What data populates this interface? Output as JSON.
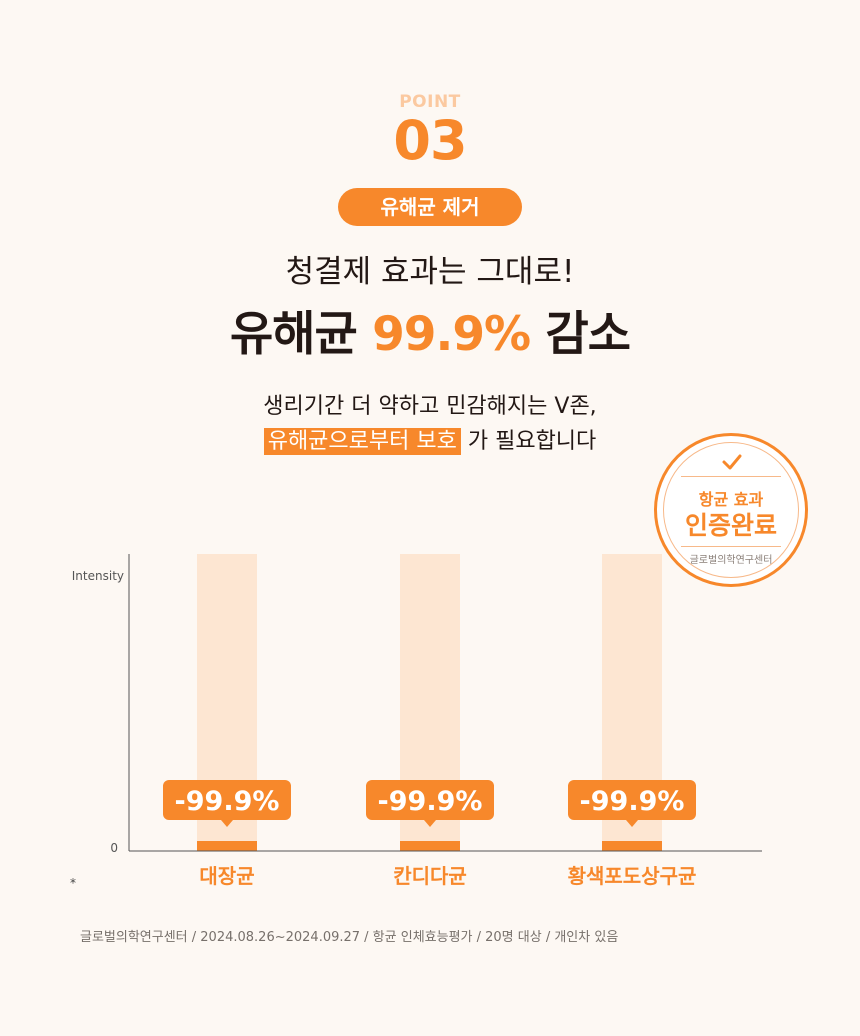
{
  "header": {
    "point_label": "POINT",
    "point_number": "03",
    "pill_label": "유해균 제거",
    "headline_line1": "청결제 효과는 그대로!",
    "headline_line2_prefix": "유해균 ",
    "headline_line2_highlight": "99.9%",
    "headline_line2_suffix": " 감소",
    "desc_line1": "생리기간 더 약하고 민감해지는 V존,",
    "desc_line2_highlight": "유해균으로부터 보호",
    "desc_line2_suffix": " 가 필요합니다"
  },
  "badge": {
    "icon": "check-icon",
    "line1": "항균 효과",
    "line2": "인증완료",
    "line3": "글로벌의학연구센터"
  },
  "chart_data": {
    "type": "bar",
    "ylabel": "Intensity",
    "y_zero_label": "0",
    "categories": [
      "대장균",
      "칸디다균",
      "황색포도상구균"
    ],
    "before_values": [
      100,
      100,
      100
    ],
    "after_values": [
      0.1,
      0.1,
      0.1
    ],
    "data_labels": [
      "-99.9%",
      "-99.9%",
      "-99.9%"
    ],
    "ylim": [
      0,
      100
    ],
    "grid": false,
    "colors": {
      "before": "#fde6d2",
      "after": "#f7882b",
      "label_bg": "#f7882b",
      "axis": "#555555"
    }
  },
  "footer": {
    "footnote_mark": "*",
    "source": "글로벌의학연구센터 / 2024.08.26~2024.09.27 / 항균 인체효능평가 / 20명 대상 / 개인차 있음"
  }
}
